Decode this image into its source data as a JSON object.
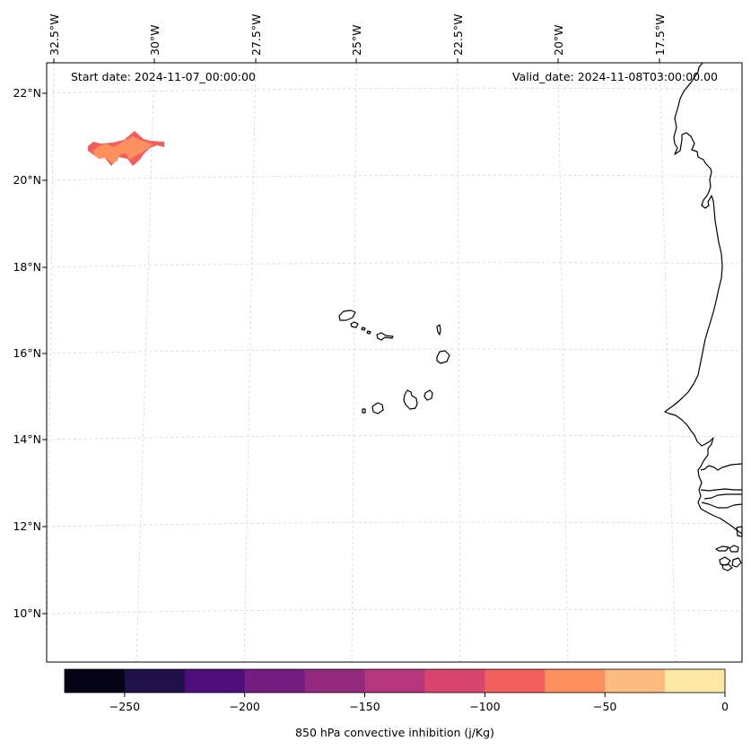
{
  "header": {
    "start_date": "Start date: 2024-11-07_00:00:00",
    "valid_date": "Valid_date: 2024-11-08T03:00:00.00"
  },
  "map": {
    "longitude_labels": [
      "32.5°W",
      "30°W",
      "27.5°W",
      "25°W",
      "22.5°W",
      "20°W",
      "17.5°W"
    ],
    "latitude_labels": [
      "22°N",
      "20°N",
      "18°N",
      "16°N",
      "14°N",
      "12°N",
      "10°N"
    ],
    "feature_names": [
      "cape-verde-islands",
      "west-african-coastline",
      "cin-field-patch"
    ]
  },
  "colorbar": {
    "label": "850 hPa convective inhibition (j/Kg)",
    "tick_labels": [
      "−250",
      "−200",
      "−150",
      "−100",
      "−50",
      "0"
    ],
    "bin_edges": [
      -275,
      -250,
      -225,
      -200,
      -175,
      -150,
      -125,
      -100,
      -75,
      -50,
      -25,
      0
    ],
    "colors": [
      "#050417",
      "#1f1147",
      "#4e0f7a",
      "#741c80",
      "#932a7e",
      "#b5367a",
      "#d8456c",
      "#f1605d",
      "#fe8f5f",
      "#febb80",
      "#fde9a5"
    ]
  }
}
